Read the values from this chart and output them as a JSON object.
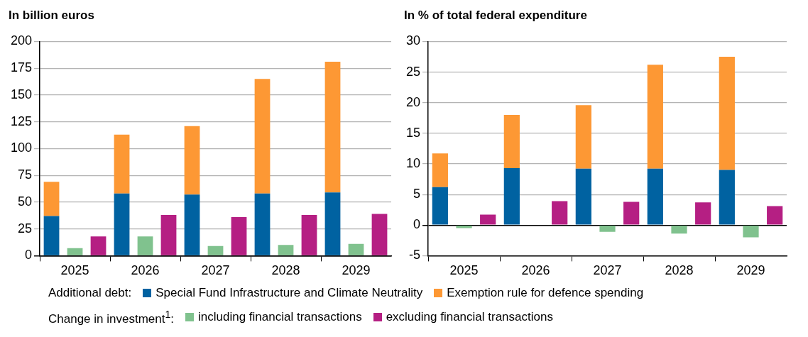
{
  "chart_data": [
    {
      "type": "bar",
      "title": "In billion euros",
      "categories": [
        null,
        "2025",
        null,
        null,
        "2026",
        null,
        null,
        "2027",
        null,
        null,
        "2028",
        null,
        null,
        "2029",
        null
      ],
      "stacked": true,
      "legend": "bottom",
      "grid": "y",
      "annotations": [
        "Additional debt:",
        "Change in investment$^{1}$:"
      ],
      "ylim": [
        0,
        200
      ],
      "yticks": [
        0,
        25,
        50,
        75,
        100,
        125,
        150,
        175,
        200
      ],
      "series": [
        {
          "name": "Special Fund Infrastructure and Climate Neutrality",
          "color": "#0062a1",
          "values": [
            37,
            null,
            null,
            58,
            null,
            null,
            57,
            null,
            null,
            58,
            null,
            null,
            59,
            null,
            null
          ]
        },
        {
          "name": "Exemption rule for defence spending",
          "color": "#fd9834",
          "values": [
            32,
            null,
            null,
            55,
            null,
            null,
            64,
            null,
            null,
            107,
            null,
            null,
            122,
            null,
            null
          ]
        },
        {
          "name": "including financial transactions",
          "color": "#80c28e",
          "values": [
            null,
            7,
            null,
            null,
            18,
            null,
            null,
            9,
            null,
            null,
            10,
            null,
            null,
            11,
            null
          ]
        },
        {
          "name": "excluding financial transactions",
          "color": "#b51f83",
          "values": [
            null,
            null,
            18,
            null,
            null,
            38,
            null,
            null,
            36,
            null,
            null,
            38,
            null,
            null,
            39
          ]
        }
      ]
    },
    {
      "type": "bar",
      "title": "In % of total federal expenditure",
      "categories": [
        null,
        "2025",
        null,
        null,
        "2026",
        null,
        null,
        "2027",
        null,
        null,
        "2028",
        null,
        null,
        "2029",
        null
      ],
      "stacked": true,
      "grid": "y",
      "ylim": [
        -5,
        30
      ],
      "yticks": [
        -5,
        0,
        5,
        10,
        15,
        20,
        25,
        30
      ],
      "series": [
        {
          "color": "#0062a1",
          "values": [
            6.2,
            null,
            null,
            9.3,
            null,
            null,
            9.2,
            null,
            null,
            9.2,
            null,
            null,
            9.0,
            null,
            null
          ]
        },
        {
          "color": "#fd9834",
          "values": [
            5.5,
            null,
            null,
            8.7,
            null,
            null,
            10.4,
            null,
            null,
            17.0,
            null,
            null,
            18.5,
            null,
            null
          ]
        },
        {
          "color": "#80c28e",
          "values": [
            null,
            -0.5,
            null,
            null,
            0,
            null,
            null,
            -1.1,
            null,
            null,
            -1.4,
            null,
            null,
            -2.0,
            null
          ]
        },
        {
          "color": "#b51f83",
          "values": [
            null,
            null,
            1.7,
            null,
            null,
            3.9,
            null,
            null,
            3.8,
            null,
            null,
            3.7,
            null,
            null,
            3.1
          ]
        }
      ]
    }
  ]
}
